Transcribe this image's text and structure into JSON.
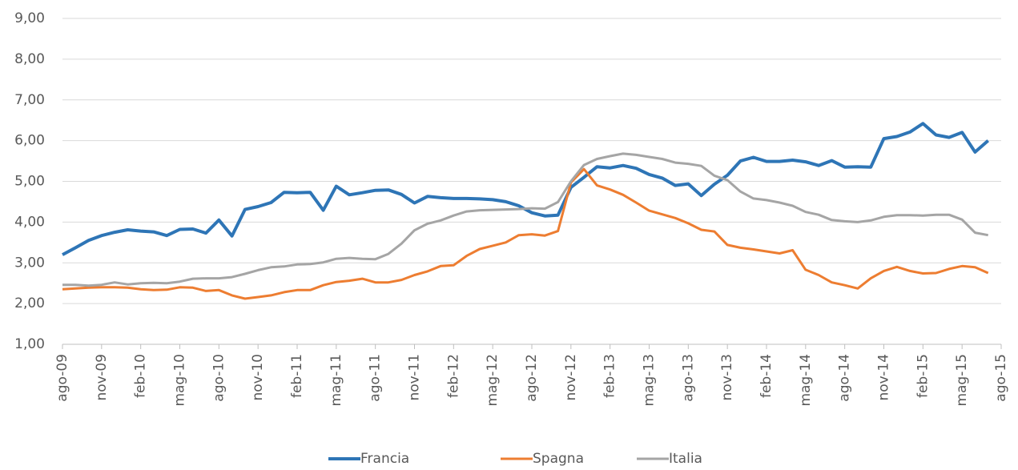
{
  "chart_data": {
    "type": "line",
    "categories": [
      "ago-09",
      null,
      null,
      "nov-09",
      null,
      null,
      "feb-10",
      null,
      null,
      "mag-10",
      null,
      null,
      "ago-10",
      null,
      null,
      "nov-10",
      null,
      null,
      "feb-11",
      null,
      null,
      "mag-11",
      null,
      null,
      "ago-11",
      null,
      null,
      "nov-11",
      null,
      null,
      "feb-12",
      null,
      null,
      "mag-12",
      null,
      null,
      "ago-12",
      null,
      null,
      "nov-12",
      null,
      null,
      "feb-13",
      null,
      null,
      "mag-13",
      null,
      null,
      "ago-13",
      null,
      null,
      "nov-13",
      null,
      null,
      "feb-14",
      null,
      null,
      "mag-14",
      null,
      null,
      "ago-14",
      null,
      null,
      "nov-14",
      null,
      null,
      "feb-15",
      null,
      null,
      "mag-15",
      null,
      null,
      "ago-15"
    ],
    "series": [
      {
        "name": "Francia",
        "color": "#2e75b6",
        "values": [
          3.2,
          3.37,
          3.55,
          3.67,
          3.75,
          3.81,
          3.78,
          3.76,
          3.67,
          3.82,
          3.83,
          3.73,
          4.05,
          3.66,
          4.31,
          4.38,
          4.48,
          4.73,
          4.72,
          4.73,
          4.29,
          4.88,
          4.67,
          4.72,
          4.78,
          4.79,
          4.68,
          4.47,
          4.63,
          4.6,
          4.58,
          4.58,
          4.57,
          4.55,
          4.5,
          4.4,
          4.23,
          4.15,
          4.17,
          4.85,
          5.1,
          5.36,
          5.33,
          5.39,
          5.32,
          5.17,
          5.08,
          4.9,
          4.94,
          4.65,
          4.93,
          5.15,
          5.5,
          5.59,
          5.49,
          5.49,
          5.52,
          5.48,
          5.39,
          5.51,
          5.35,
          5.36,
          5.35,
          6.05,
          6.1,
          6.21,
          6.42,
          6.14,
          6.08,
          6.2,
          5.72,
          6.0,
          null
        ]
      },
      {
        "name": "Spagna",
        "color": "#ed7d31",
        "values": [
          2.35,
          2.37,
          2.39,
          2.4,
          2.4,
          2.39,
          2.35,
          2.33,
          2.34,
          2.4,
          2.39,
          2.31,
          2.33,
          2.2,
          2.12,
          2.16,
          2.2,
          2.28,
          2.33,
          2.33,
          2.45,
          2.53,
          2.56,
          2.61,
          2.52,
          2.52,
          2.58,
          2.7,
          2.79,
          2.92,
          2.94,
          3.17,
          3.34,
          3.42,
          3.5,
          3.68,
          3.7,
          3.67,
          3.78,
          4.97,
          5.3,
          4.9,
          4.8,
          4.67,
          4.48,
          4.28,
          4.19,
          4.1,
          3.97,
          3.81,
          3.77,
          3.44,
          3.37,
          3.33,
          3.28,
          3.23,
          3.31,
          2.83,
          2.7,
          2.52,
          2.45,
          2.37,
          2.62,
          2.8,
          2.9,
          2.8,
          2.74,
          2.75,
          2.85,
          2.92,
          2.89,
          2.75,
          null
        ]
      },
      {
        "name": "Italia",
        "color": "#a5a5a5",
        "values": [
          2.46,
          2.46,
          2.44,
          2.46,
          2.52,
          2.47,
          2.5,
          2.51,
          2.5,
          2.54,
          2.61,
          2.62,
          2.62,
          2.65,
          2.73,
          2.82,
          2.89,
          2.91,
          2.96,
          2.97,
          3.01,
          3.1,
          3.12,
          3.1,
          3.09,
          3.22,
          3.47,
          3.8,
          3.96,
          4.04,
          4.16,
          4.26,
          4.29,
          4.3,
          4.31,
          4.32,
          4.34,
          4.33,
          4.49,
          5.0,
          5.4,
          5.55,
          5.62,
          5.68,
          5.65,
          5.6,
          5.55,
          5.46,
          5.43,
          5.38,
          5.14,
          5.03,
          4.75,
          4.58,
          4.54,
          4.48,
          4.4,
          4.25,
          4.18,
          4.05,
          4.02,
          4.0,
          4.04,
          4.13,
          4.17,
          4.17,
          4.16,
          4.18,
          4.18,
          4.06,
          3.74,
          3.68,
          null
        ]
      }
    ],
    "ylim": [
      1,
      9
    ],
    "yticks": [
      {
        "value": 1,
        "label": "1,00"
      },
      {
        "value": 2,
        "label": "2,00"
      },
      {
        "value": 3,
        "label": "3,00"
      },
      {
        "value": 4,
        "label": "4,00"
      },
      {
        "value": 5,
        "label": "5,00"
      },
      {
        "value": 6,
        "label": "6,00"
      },
      {
        "value": 7,
        "label": "7,00"
      },
      {
        "value": 8,
        "label": "8,00"
      },
      {
        "value": 9,
        "label": "9,00"
      }
    ],
    "grid": true,
    "legend": "bottom"
  }
}
